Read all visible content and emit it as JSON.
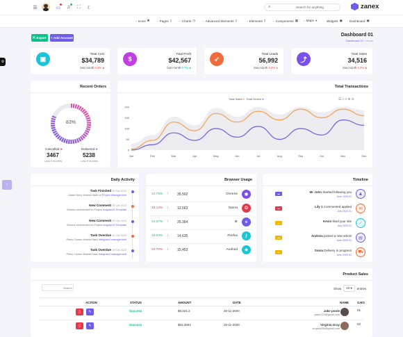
{
  "topbar": {
    "search_placeholder": "Search for anything",
    "brand": "zanex",
    "nav": [
      {
        "label": "Icons",
        "icon": "x-icon"
      },
      {
        "label": "Pages",
        "icon": "file-icon"
      },
      {
        "label": "Charts",
        "icon": "clock-icon"
      },
      {
        "label": "Advanced Elements",
        "icon": "file-icon"
      },
      {
        "label": "Elements",
        "icon": "file-icon"
      },
      {
        "label": "Components",
        "icon": "calendar-icon"
      },
      {
        "label": "Maps",
        "icon": "pin-icon"
      },
      {
        "label": "Widgets",
        "icon": "layout-icon"
      },
      {
        "label": "Dashboard",
        "icon": "layout-icon"
      }
    ]
  },
  "page": {
    "title": "Dashboard 01",
    "breadcrumb_active": "Dashboard 01",
    "breadcrumb_sep": "/",
    "breadcrumb_home": "Home",
    "export_label": "Export",
    "add_account_label": "Add Account"
  },
  "stats": [
    {
      "label": "Total Cost",
      "value": "$34,789",
      "sub_prefix": "last month",
      "sub_value": "0.2%",
      "sub_color": "#f44336",
      "icon_color": "#1bc5d8",
      "icon": "briefcase-icon"
    },
    {
      "label": "Total Profit",
      "value": "$42,567",
      "sub_prefix": "last month",
      "sub_value": "0.7%",
      "sub_color": "#0ac28f",
      "icon_color": "#c03fe0",
      "icon": "dollar-icon"
    },
    {
      "label": "Total Leads",
      "value": "56,992",
      "sub_prefix": "last month",
      "sub_value": "0.2%",
      "sub_color": "#f44336",
      "icon_color": "#f26b3a",
      "icon": "rocket-icon"
    },
    {
      "label": "Total Sales",
      "value": "34,516",
      "sub_prefix": "last month",
      "sub_value": "0.4%",
      "sub_color": "#f44336",
      "icon_color": "#7a50e8",
      "icon": "chart-icon"
    }
  ],
  "recent_orders": {
    "title": "Recent Orders",
    "percent": "83%",
    "cancelled_label": "Cancelled",
    "cancelled_value": "3467",
    "delivered_label": "Delivered",
    "delivered_value": "5238",
    "period": "Last 6 months"
  },
  "chart_data": {
    "type": "line",
    "title": "Total Transactions",
    "categories": [
      "Jan",
      "Feb",
      "Mar",
      "Apr",
      "May",
      "Jun",
      "Jul",
      "Aug",
      "Sep",
      "Oct",
      "Nov",
      "Dec"
    ],
    "series": [
      {
        "name": "Total Sales",
        "color": "#f5a04e",
        "values": [
          5,
          45,
          130,
          90,
          170,
          130,
          180,
          140,
          190,
          150,
          190,
          160
        ]
      },
      {
        "name": "Total Orders",
        "color": "#6c5ce7",
        "values": [
          0,
          25,
          80,
          45,
          100,
          60,
          110,
          50,
          100,
          70,
          140,
          115
        ]
      }
    ],
    "ylim": [
      0,
      200
    ],
    "yticks": [
      "0",
      "50",
      "100",
      "150",
      "200"
    ],
    "background_band": "#ececf1",
    "legend_placement": "top-center",
    "grid": false
  },
  "daily_activity": {
    "title": "Daily Activity",
    "items": [
      {
        "title": "Task Finished",
        "date": "29 Oct 2020",
        "sub_prefix": "Adam Berry finished task on",
        "sub_link": "Project Management",
        "color": "#6c5ce7"
      },
      {
        "title": "New Comment",
        "date": "25 Oct 2020",
        "sub_prefix": "Victoria commented on Project",
        "sub_link": "AngularJS Template",
        "color": "#f26b3a"
      },
      {
        "title": "New Comment",
        "date": "25 Oct 2020",
        "sub_prefix": "Victoria commented on Project",
        "sub_link": "AngularJS Template",
        "color": "#6c5ce7"
      },
      {
        "title": "Task Overdue",
        "date": "14 Oct 2020",
        "sub_prefix": "Petey Cruiser finished task",
        "sub_link": "Integrated management",
        "color": "#f26b3a"
      },
      {
        "title": "Task Overdue",
        "date": "29 Oct 2020",
        "sub_prefix": "Petey Cruiser finished task",
        "sub_link": "Integrated management",
        "color": "#6c5ce7"
      }
    ]
  },
  "browser_usage": {
    "title": "Browser Usage",
    "rows": [
      {
        "pct": "12.75%",
        "trend": "up",
        "value": "35,502",
        "name": "Chrome",
        "color": "#7a50e8"
      },
      {
        "pct": "15.12%",
        "trend": "down",
        "value": "12,563",
        "name": "Opera",
        "color": "#e53949"
      },
      {
        "pct": "24.37%",
        "trend": "up",
        "value": "25,364",
        "name": "IE",
        "color": "#6c5ce7"
      },
      {
        "pct": "15.63%",
        "trend": "down",
        "value": "14,635",
        "name": "Firefox",
        "color": "#1bc5d8"
      },
      {
        "pct": "23.70%",
        "trend": "down",
        "value": "15,453",
        "name": "Android",
        "color": "#1bc5d8"
      }
    ]
  },
  "timeline": {
    "title": "Timeline",
    "items": [
      {
        "badge_color": "#6c5ce7",
        "name": "Mr John",
        "text": "Started following you",
        "date": "June 2020 01",
        "icon": "user-add-icon",
        "icon_color": "#6c5ce7"
      },
      {
        "badge_color": "#e53949",
        "name": "Lily 1",
        "text": "Commented applied",
        "date": "July 2020 01",
        "icon": "chat-icon",
        "icon_color": "#f26b3a"
      },
      {
        "badge_color": "#f5b400",
        "name": "Kevin",
        "text": "liked your site",
        "date": "July 2020 01",
        "icon": "thumb-icon",
        "icon_color": "#1bc5d8"
      },
      {
        "badge_color": "#f5b400",
        "name": "Andreia",
        "text": "posted a new article",
        "date": "June 2020 01",
        "icon": "doc-icon",
        "icon_color": "#6c5ce7"
      },
      {
        "badge_color": "#f5b400",
        "name": "Sonia",
        "text": "Delivery in progress",
        "date": "June 2020 01",
        "icon": "truck-icon",
        "icon_color": "#f26b3a"
      }
    ]
  },
  "product_sales": {
    "title": "Product Sales",
    "search_placeholder": "Search",
    "show_label": "Show",
    "show_value": "10",
    "entries_label": "entries",
    "columns": [
      "ACTION",
      "STATUS",
      "AMOUNT",
      "DATE",
      "NAME",
      "S.NO"
    ],
    "rows": [
      {
        "status": "Success",
        "amount": "$5,321.2",
        "date": "20-11-2020",
        "name": "Jake poole",
        "email": "jacke123@gmail.com",
        "sno": "01"
      },
      {
        "status": "Success",
        "amount": "$53,3654",
        "date": "20-11-2020",
        "name": "Virginia Gray",
        "email": "virginia456@gmail.com",
        "sno": "02"
      }
    ]
  }
}
